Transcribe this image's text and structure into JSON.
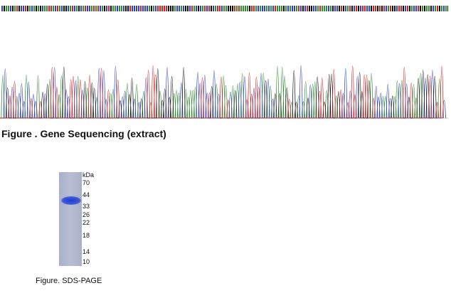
{
  "sequencing": {
    "caption": "Figure . Gene Sequencing (extract)",
    "trace_colors": {
      "A": "#2e8b2e",
      "C": "#2f3fbf",
      "G": "#111111",
      "T": "#d02020"
    }
  },
  "gel": {
    "unit_label": "kDa",
    "markers": [
      "70",
      "44",
      "33",
      "26",
      "22",
      "18",
      "14",
      "10"
    ],
    "band_color": "#2040d0",
    "caption": "Figure. SDS-PAGE"
  }
}
